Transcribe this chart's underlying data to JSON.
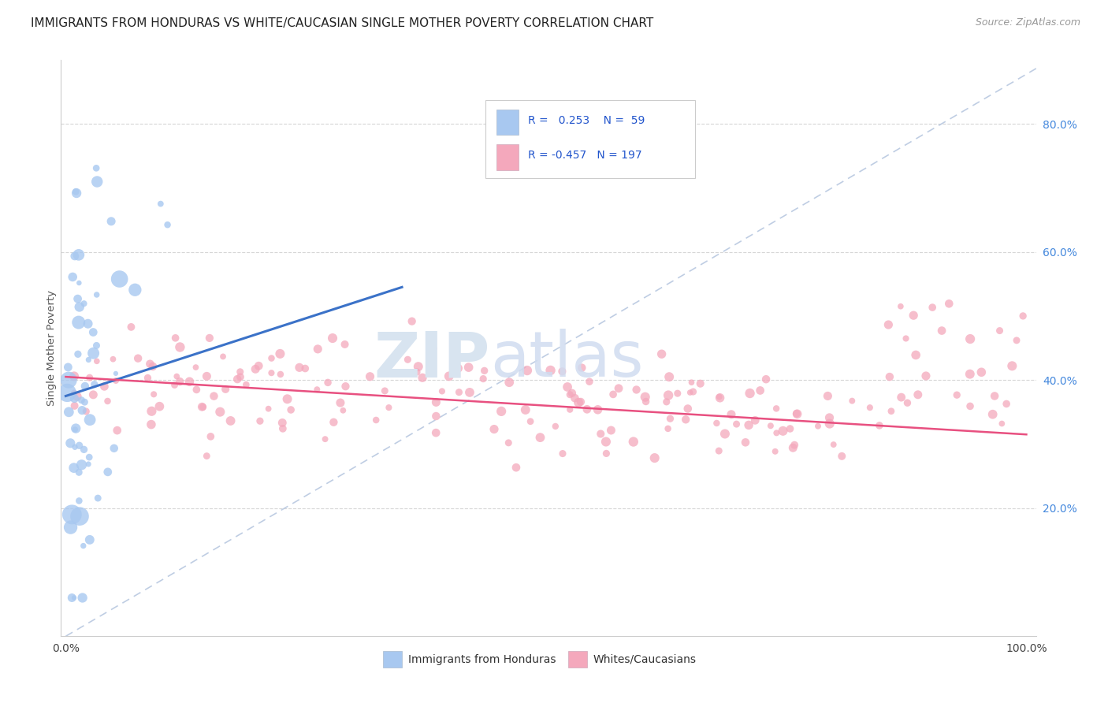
{
  "title": "IMMIGRANTS FROM HONDURAS VS WHITE/CAUCASIAN SINGLE MOTHER POVERTY CORRELATION CHART",
  "source": "Source: ZipAtlas.com",
  "ylabel": "Single Mother Poverty",
  "ylabel_right_ticks": [
    "20.0%",
    "40.0%",
    "60.0%",
    "80.0%"
  ],
  "ylabel_right_vals": [
    0.2,
    0.4,
    0.6,
    0.8
  ],
  "legend_label_blue": "Immigrants from Honduras",
  "legend_label_pink": "Whites/Caucasians",
  "R_blue": 0.253,
  "N_blue": 59,
  "R_pink": -0.457,
  "N_pink": 197,
  "blue_color": "#A8C8F0",
  "pink_color": "#F4A8BC",
  "blue_line_color": "#3B72C8",
  "pink_line_color": "#E85080",
  "dashed_line_color": "#B8C8E0",
  "watermark_zip": "ZIP",
  "watermark_atlas": "atlas",
  "title_fontsize": 11,
  "source_fontsize": 9,
  "ylim_min": 0.0,
  "ylim_max": 0.9,
  "xlim_min": -0.005,
  "xlim_max": 1.01
}
